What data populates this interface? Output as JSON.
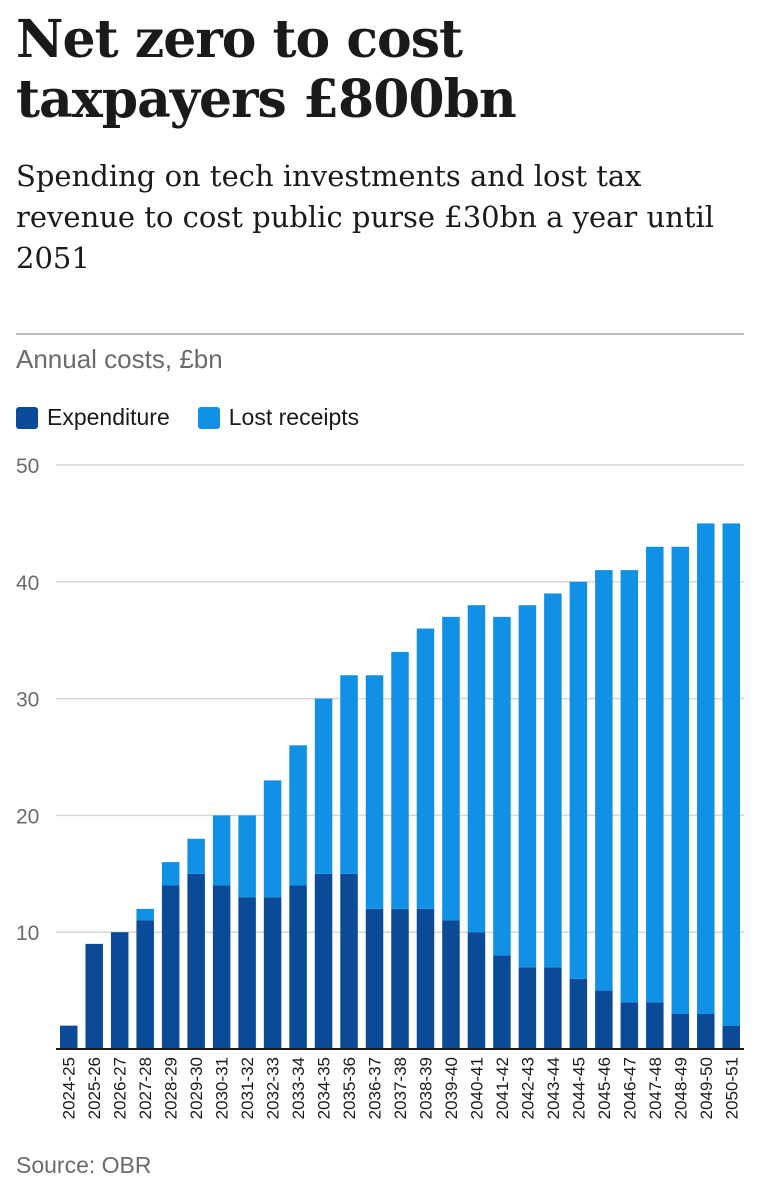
{
  "title": "Net zero to cost taxpayers £800bn",
  "subtitle": "Spending on tech investments and lost tax revenue to cost public purse £30bn a year until 2051",
  "source": "Source: OBR",
  "colors": {
    "expenditure": "#0a4a97",
    "lost_receipts": "#1091e6",
    "grid": "#d7d7d7"
  },
  "chart_data": {
    "type": "bar",
    "stacked": true,
    "ylabel": "Annual costs, £bn",
    "ylim": [
      0,
      50
    ],
    "yticks": [
      10,
      20,
      30,
      40,
      50
    ],
    "legend_position": "top-left",
    "grid": true,
    "categories": [
      "2024-25",
      "2025-26",
      "2026-27",
      "2027-28",
      "2028-29",
      "2029-30",
      "2030-31",
      "2031-32",
      "2032-33",
      "2033-34",
      "2034-35",
      "2035-36",
      "2036-37",
      "2037-38",
      "2038-39",
      "2039-40",
      "2040-41",
      "2041-42",
      "2042-43",
      "2043-44",
      "2044-45",
      "2045-46",
      "2046-47",
      "2047-48",
      "2048-49",
      "2049-50",
      "2050-51"
    ],
    "series": [
      {
        "name": "Expenditure",
        "values": [
          2,
          9,
          10,
          11,
          14,
          15,
          14,
          13,
          13,
          14,
          15,
          15,
          12,
          12,
          12,
          11,
          10,
          8,
          7,
          7,
          6,
          5,
          4,
          4,
          3,
          3,
          2
        ]
      },
      {
        "name": "Lost receipts",
        "values": [
          0,
          0,
          0,
          1,
          2,
          3,
          6,
          7,
          10,
          12,
          15,
          17,
          20,
          22,
          24,
          26,
          28,
          29,
          31,
          32,
          34,
          36,
          37,
          39,
          40,
          42,
          43
        ]
      }
    ]
  }
}
